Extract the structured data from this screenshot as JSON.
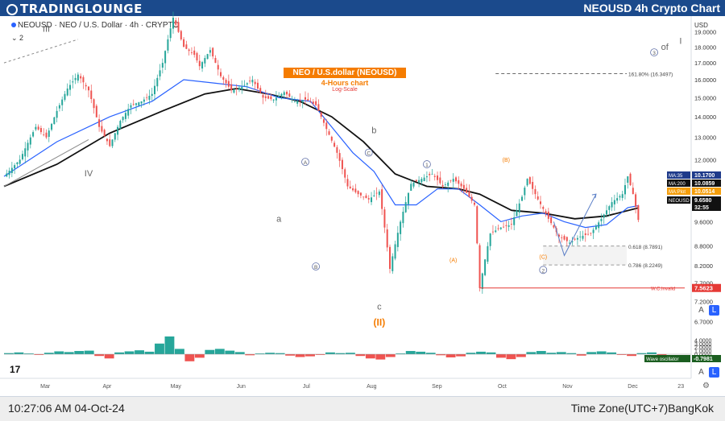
{
  "header": {
    "brand": "TRADINGLOUNGE",
    "title": "NEOUSD 4h Crypto Chart"
  },
  "symbol_line": "NEOUSD · NEO / U.S. Dollar · 4h · CRYPTO",
  "indicator_count": "2",
  "overlay": {
    "title": "NEO / U.S.dollar (NEOUSD)",
    "subtitle": "4-Hours chart",
    "scale": "Log-Scale"
  },
  "currency": "USD",
  "footer": {
    "time": "10:27:06 AM 04-Oct-24",
    "timezone": "Time Zone(UTC+7)BangKok"
  },
  "buttons": {
    "log": "L",
    "auto": "A"
  },
  "colors": {
    "header": "#1b4a8c",
    "up": "#26a69a",
    "down": "#ef5350",
    "ma35": "#2962ff",
    "ma200": "#111111",
    "orange": "#f57c00",
    "invalid": "#e53935"
  },
  "chart_data": {
    "type": "line",
    "x_labels": [
      "Mar",
      "Apr",
      "May",
      "Jun",
      "Jul",
      "Aug",
      "Sep",
      "Oct",
      "Nov",
      "Dec",
      "23"
    ],
    "y_ticks": [
      19.0,
      18.0,
      17.0,
      16.0,
      15.0,
      14.0,
      13.0,
      12.0,
      11.0,
      9.6,
      8.8,
      8.2,
      7.7,
      7.2,
      6.7
    ],
    "ylim": [
      6.5,
      20.0
    ],
    "scale": "log",
    "price_path": [
      [
        0,
        11.3
      ],
      [
        3,
        12.0
      ],
      [
        6,
        13.5
      ],
      [
        8,
        13.0
      ],
      [
        10,
        14.3
      ],
      [
        12,
        15.5
      ],
      [
        14,
        16.3
      ],
      [
        16,
        15.4
      ],
      [
        18,
        13.5
      ],
      [
        20,
        12.6
      ],
      [
        22,
        13.8
      ],
      [
        24,
        14.6
      ],
      [
        26,
        14.8
      ],
      [
        28,
        15.2
      ],
      [
        30,
        17.0
      ],
      [
        32,
        20.0
      ],
      [
        34,
        18.0
      ],
      [
        36,
        17.5
      ],
      [
        37,
        16.8
      ],
      [
        39,
        17.8
      ],
      [
        41,
        16.2
      ],
      [
        43,
        15.4
      ],
      [
        45,
        15.6
      ],
      [
        47,
        16.0
      ],
      [
        49,
        15.0
      ],
      [
        51,
        14.9
      ],
      [
        53,
        15.3
      ],
      [
        55,
        14.8
      ],
      [
        57,
        14.9
      ],
      [
        59,
        14.6
      ],
      [
        61,
        13.4
      ],
      [
        63,
        12.3
      ],
      [
        65,
        10.9
      ],
      [
        67,
        10.6
      ],
      [
        69,
        10.4
      ],
      [
        71,
        10.7
      ],
      [
        73,
        8.1
      ],
      [
        75,
        9.6
      ],
      [
        77,
        11.0
      ],
      [
        79,
        11.2
      ],
      [
        81,
        11.4
      ],
      [
        83,
        10.9
      ],
      [
        85,
        11.2
      ],
      [
        87,
        10.8
      ],
      [
        89,
        10.2
      ],
      [
        90,
        7.56
      ],
      [
        92,
        9.2
      ],
      [
        94,
        9.4
      ],
      [
        96,
        9.5
      ],
      [
        98,
        10.5
      ],
      [
        99,
        11.2
      ],
      [
        101,
        10.4
      ],
      [
        103,
        9.7
      ],
      [
        105,
        9.1
      ],
      [
        107,
        8.9
      ],
      [
        109,
        9.1
      ],
      [
        111,
        9.2
      ],
      [
        113,
        9.7
      ],
      [
        115,
        10.3
      ],
      [
        117,
        10.6
      ],
      [
        118,
        11.3
      ],
      [
        119,
        10.6
      ],
      [
        120,
        9.66
      ]
    ],
    "ma35_path": [
      [
        0,
        11.3
      ],
      [
        10,
        12.8
      ],
      [
        20,
        14.0
      ],
      [
        28,
        14.8
      ],
      [
        34,
        16.0
      ],
      [
        40,
        15.8
      ],
      [
        46,
        15.6
      ],
      [
        52,
        15.0
      ],
      [
        58,
        14.8
      ],
      [
        62,
        13.5
      ],
      [
        66,
        12.3
      ],
      [
        70,
        11.5
      ],
      [
        74,
        10.2
      ],
      [
        78,
        10.2
      ],
      [
        82,
        10.8
      ],
      [
        86,
        10.8
      ],
      [
        90,
        10.2
      ],
      [
        94,
        9.6
      ],
      [
        98,
        9.8
      ],
      [
        102,
        9.9
      ],
      [
        106,
        9.6
      ],
      [
        110,
        9.4
      ],
      [
        114,
        9.5
      ],
      [
        118,
        10.1
      ],
      [
        120,
        10.17
      ]
    ],
    "ma200_path": [
      [
        0,
        10.9
      ],
      [
        10,
        11.8
      ],
      [
        20,
        13.2
      ],
      [
        30,
        14.3
      ],
      [
        38,
        15.2
      ],
      [
        44,
        15.5
      ],
      [
        50,
        15.2
      ],
      [
        56,
        14.8
      ],
      [
        62,
        14.0
      ],
      [
        68,
        12.8
      ],
      [
        74,
        11.4
      ],
      [
        80,
        10.9
      ],
      [
        86,
        10.8
      ],
      [
        90,
        10.6
      ],
      [
        96,
        10.0
      ],
      [
        102,
        9.9
      ],
      [
        108,
        9.7
      ],
      [
        114,
        9.8
      ],
      [
        120,
        10.09
      ]
    ],
    "price_labels": [
      {
        "name": "MA:35",
        "value": "10.1700"
      },
      {
        "name": "MA:200",
        "value": "10.0859"
      },
      {
        "name": "MA:Plot",
        "value": "10.0514"
      },
      {
        "name": "NEOUSD",
        "value": "9.6580"
      },
      {
        "name": "",
        "value": "32:55"
      }
    ],
    "fib_levels": [
      {
        "label": "161.80% (16.3497)",
        "value": 16.35
      },
      {
        "label": "0.618 (8.7891)",
        "value": 8.79
      },
      {
        "label": "0.786 (8.2249)",
        "value": 8.22
      }
    ],
    "invalidation": {
      "label": "W.C.Invalid",
      "value": "7.5623"
    },
    "wave_labels": [
      {
        "text": "III",
        "x": 8,
        "y": 19.0
      },
      {
        "text": "IV",
        "x": 16,
        "y": 11.3
      },
      {
        "text": "a",
        "x": 52,
        "y": 9.6
      },
      {
        "text": "b",
        "x": 70,
        "y": 13.2
      },
      {
        "text": "c",
        "x": 71,
        "y": 7.0
      },
      {
        "text": "(II)",
        "x": 71,
        "y": 6.6
      },
      {
        "text": "A",
        "x": 57,
        "y": 11.8
      },
      {
        "text": "B",
        "x": 59,
        "y": 8.1
      },
      {
        "text": "C",
        "x": 69,
        "y": 12.2
      },
      {
        "text": "1",
        "x": 80,
        "y": 11.7
      },
      {
        "text": "(A)",
        "x": 85,
        "y": 8.3
      },
      {
        "text": "(B)",
        "x": 95,
        "y": 11.9
      },
      {
        "text": "(C)",
        "x": 102,
        "y": 8.4
      },
      {
        "text": "2",
        "x": 102,
        "y": 8.0
      },
      {
        "text": "3",
        "x": 123,
        "y": 17.5
      },
      {
        "text": "of",
        "x": 125,
        "y": 17.8
      },
      {
        "text": "I",
        "x": 128,
        "y": 18.2
      }
    ],
    "oscillator": {
      "label": "Wave oscillator",
      "value": "-0.7981",
      "y_ticks": [
        "4.0000",
        "3.0000",
        "2.0000",
        "1.0000",
        "0.0000"
      ],
      "values": [
        0.3,
        0.5,
        0.2,
        -0.2,
        0.4,
        0.8,
        0.6,
        0.9,
        1.0,
        -0.5,
        -1.2,
        0.5,
        0.8,
        1.1,
        0.7,
        3.0,
        5.0,
        1.5,
        -2.0,
        -1.0,
        1.2,
        1.5,
        1.0,
        0.6,
        -0.3,
        0.2,
        0.4,
        0.3,
        -0.4,
        -0.8,
        -0.6,
        -0.2,
        0.5,
        0.3,
        0.4,
        -0.5,
        -1.2,
        -1.5,
        -0.8,
        0.2,
        0.9,
        0.7,
        0.4,
        -0.3,
        -0.9,
        -0.6,
        0.4,
        0.7,
        0.5,
        -1.0,
        -1.4,
        -0.8,
        0.6,
        0.9,
        0.4,
        0.6,
        0.3,
        -0.4,
        0.6,
        0.8,
        0.5,
        -0.2,
        -0.5,
        0.3,
        0.5,
        -0.8
      ]
    }
  }
}
